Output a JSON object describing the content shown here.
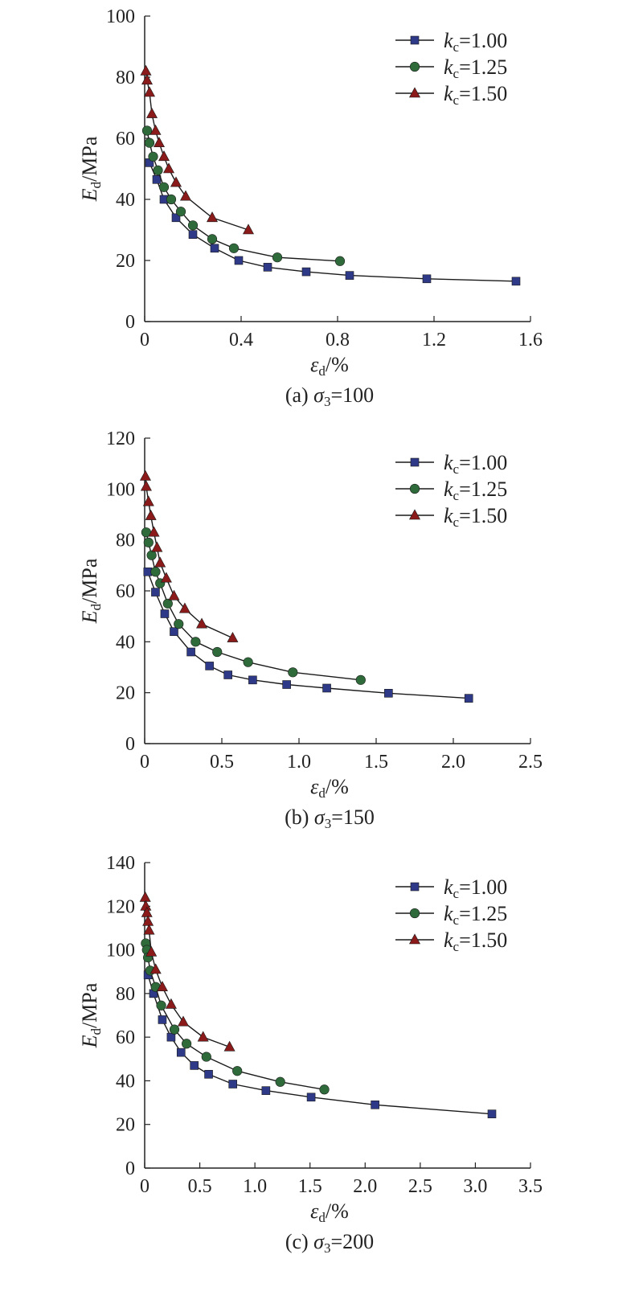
{
  "colors": {
    "kc100": "#2e3a87",
    "kc125": "#2f6b3a",
    "kc150": "#8b1a1a",
    "axis": "#222222",
    "line": "#1a1a1a"
  },
  "chart_data": [
    {
      "type": "line",
      "caption": "(a) σ3=100",
      "caption_prefix": "(a) ",
      "caption_sym": "σ",
      "caption_sub": "3",
      "caption_suffix": "=100",
      "xlabel": "εd/%",
      "xlabel_sym": "ε",
      "xlabel_sub": "d",
      "xlabel_unit": "/%",
      "ylabel": "Ed/MPa",
      "ylabel_sym": "E",
      "ylabel_sub": "d",
      "ylabel_unit": "/MPa",
      "xlim": [
        0,
        1.6
      ],
      "ylim": [
        0,
        100
      ],
      "xticks": [
        0,
        0.4,
        0.8,
        1.2,
        1.6
      ],
      "xtick_labels": [
        "0",
        "0.4",
        "0.8",
        "1.2",
        "1.6"
      ],
      "yticks": [
        0,
        20,
        40,
        60,
        80,
        100
      ],
      "ytick_labels": [
        "0",
        "20",
        "40",
        "60",
        "80",
        "100"
      ],
      "legend": "top-right",
      "series": [
        {
          "name": "kc=1.00",
          "name_sym": "k",
          "name_sub": "c",
          "name_val": "=1.00",
          "marker": "square",
          "color_key": "kc100",
          "x": [
            0.02,
            0.05,
            0.08,
            0.13,
            0.2,
            0.29,
            0.39,
            0.51,
            0.67,
            0.85,
            1.17,
            1.54
          ],
          "y": [
            52,
            46.5,
            40,
            34,
            28.5,
            24,
            20,
            17.8,
            16.3,
            15.1,
            14,
            13.2
          ]
        },
        {
          "name": "kc=1.25",
          "name_sym": "k",
          "name_sub": "c",
          "name_val": "=1.25",
          "marker": "circle",
          "color_key": "kc125",
          "x": [
            0.01,
            0.02,
            0.035,
            0.055,
            0.08,
            0.11,
            0.15,
            0.2,
            0.28,
            0.37,
            0.55,
            0.81
          ],
          "y": [
            62.5,
            58.5,
            54,
            49.5,
            44,
            40,
            36,
            31.5,
            27,
            24,
            21,
            19.8
          ]
        },
        {
          "name": "kc=1.50",
          "name_sym": "k",
          "name_sub": "c",
          "name_val": "=1.50",
          "marker": "triangle",
          "color_key": "kc150",
          "x": [
            0.005,
            0.01,
            0.02,
            0.03,
            0.045,
            0.06,
            0.08,
            0.1,
            0.13,
            0.17,
            0.28,
            0.43
          ],
          "y": [
            82,
            79,
            75,
            68,
            62.5,
            58.5,
            54,
            50,
            45.5,
            41,
            34,
            30
          ]
        }
      ]
    },
    {
      "type": "line",
      "caption": "(b) σ3=150",
      "caption_prefix": "(b) ",
      "caption_sym": "σ",
      "caption_sub": "3",
      "caption_suffix": "=150",
      "xlabel": "εd/%",
      "xlabel_sym": "ε",
      "xlabel_sub": "d",
      "xlabel_unit": "/%",
      "ylabel": "Ed/MPa",
      "ylabel_sym": "E",
      "ylabel_sub": "d",
      "ylabel_unit": "/MPa",
      "xlim": [
        0,
        2.5
      ],
      "ylim": [
        0,
        120
      ],
      "xticks": [
        0,
        0.5,
        1.0,
        1.5,
        2.0,
        2.5
      ],
      "xtick_labels": [
        "0",
        "0.5",
        "1.0",
        "1.5",
        "2.0",
        "2.5"
      ],
      "yticks": [
        0,
        20,
        40,
        60,
        80,
        100,
        120
      ],
      "ytick_labels": [
        "0",
        "20",
        "40",
        "60",
        "80",
        "100",
        "120"
      ],
      "legend": "top-right",
      "series": [
        {
          "name": "kc=1.00",
          "name_sym": "k",
          "name_sub": "c",
          "name_val": "=1.00",
          "marker": "square",
          "color_key": "kc100",
          "x": [
            0.02,
            0.07,
            0.13,
            0.19,
            0.3,
            0.42,
            0.54,
            0.7,
            0.92,
            1.18,
            1.58,
            2.1
          ],
          "y": [
            67.5,
            59.5,
            51,
            44,
            36,
            30.5,
            27,
            25,
            23.2,
            21.8,
            19.8,
            17.8
          ]
        },
        {
          "name": "kc=1.25",
          "name_sym": "k",
          "name_sub": "c",
          "name_val": "=1.25",
          "marker": "circle",
          "color_key": "kc125",
          "x": [
            0.01,
            0.025,
            0.045,
            0.07,
            0.1,
            0.15,
            0.22,
            0.33,
            0.47,
            0.67,
            0.96,
            1.4
          ],
          "y": [
            83,
            79,
            74,
            67.5,
            63,
            55,
            47,
            40,
            36,
            32,
            28,
            25
          ]
        },
        {
          "name": "kc=1.50",
          "name_sym": "k",
          "name_sub": "c",
          "name_val": "=1.50",
          "marker": "triangle",
          "color_key": "kc150",
          "x": [
            0.005,
            0.01,
            0.025,
            0.04,
            0.06,
            0.08,
            0.1,
            0.14,
            0.19,
            0.26,
            0.37,
            0.57
          ],
          "y": [
            105,
            101,
            95,
            89.5,
            83,
            77,
            71,
            65,
            58,
            53,
            47,
            41.5
          ]
        }
      ]
    },
    {
      "type": "line",
      "caption": "(c) σ3=200",
      "caption_prefix": "(c) ",
      "caption_sym": "σ",
      "caption_sub": "3",
      "caption_suffix": "=200",
      "xlabel": "εd/%",
      "xlabel_sym": "ε",
      "xlabel_sub": "d",
      "xlabel_unit": "/%",
      "ylabel": "Ed/MPa",
      "ylabel_sym": "E",
      "ylabel_sub": "d",
      "ylabel_unit": "/MPa",
      "xlim": [
        0,
        3.5
      ],
      "ylim": [
        0,
        140
      ],
      "xticks": [
        0,
        0.5,
        1.0,
        1.5,
        2.0,
        2.5,
        3.0,
        3.5
      ],
      "xtick_labels": [
        "0",
        "0.5",
        "1.0",
        "1.5",
        "2.0",
        "2.5",
        "3.0",
        "3.5"
      ],
      "yticks": [
        0,
        20,
        40,
        60,
        80,
        100,
        120,
        140
      ],
      "ytick_labels": [
        "0",
        "20",
        "40",
        "60",
        "80",
        "100",
        "120",
        "140"
      ],
      "legend": "top-right",
      "series": [
        {
          "name": "kc=1.00",
          "name_sym": "k",
          "name_sub": "c",
          "name_val": "=1.00",
          "marker": "square",
          "color_key": "kc100",
          "x": [
            0.03,
            0.08,
            0.16,
            0.24,
            0.33,
            0.45,
            0.58,
            0.8,
            1.1,
            1.51,
            2.09,
            3.15
          ],
          "y": [
            88.5,
            80,
            68,
            60,
            53,
            47,
            43,
            38.5,
            35.5,
            32.5,
            29,
            24.8
          ]
        },
        {
          "name": "kc=1.25",
          "name_sym": "k",
          "name_sub": "c",
          "name_val": "=1.25",
          "marker": "circle",
          "color_key": "kc125",
          "x": [
            0.01,
            0.02,
            0.03,
            0.05,
            0.1,
            0.15,
            0.27,
            0.38,
            0.56,
            0.84,
            1.23,
            1.63
          ],
          "y": [
            103,
            100,
            96.5,
            90.5,
            83,
            74.5,
            63.5,
            57,
            51,
            44.5,
            39.5,
            36
          ]
        },
        {
          "name": "kc=1.50",
          "name_sym": "k",
          "name_sub": "c",
          "name_val": "=1.50",
          "marker": "triangle",
          "color_key": "kc150",
          "x": [
            0.005,
            0.01,
            0.02,
            0.03,
            0.04,
            0.06,
            0.1,
            0.16,
            0.24,
            0.35,
            0.53,
            0.77
          ],
          "y": [
            124,
            120,
            117,
            113,
            109,
            99,
            91,
            83,
            75,
            67,
            60,
            55.5
          ]
        }
      ]
    }
  ]
}
